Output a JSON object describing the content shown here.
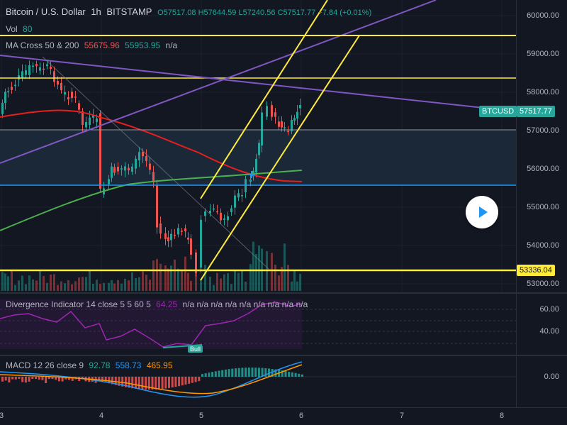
{
  "header": {
    "symbol": "Bitcoin / U.S. Dollar",
    "interval": "1h",
    "exchange": "BITSTAMP",
    "ohlc": "O57517.08 H57644.59 L57240.56 C57517.77 +7.84 (+0.01%)"
  },
  "legends": {
    "vol_name": "Vol",
    "vol_value": "80",
    "ma_name": "MA Cross 50 & 200",
    "ma_value_1": "55675.96",
    "ma_value_2": "55953.95",
    "ma_value_3": "n/a",
    "div_name": "Divergence Indicator 14 close 5 5 60 5",
    "div_value": "64.25",
    "div_rest": "n/a n/a n/a n/a n/a n/a n/a n/a n/a",
    "macd_name": "MACD 12 26 close 9",
    "macd_value_1": "92.78",
    "macd_value_2": "558.73",
    "macd_value_3": "465.95"
  },
  "price_axis": [
    "60000.00",
    "59000.00",
    "58000.00",
    "57000.00",
    "56000.00",
    "55000.00",
    "54000.00",
    "53000.00"
  ],
  "div_axis": [
    "60.00",
    "40.00"
  ],
  "macd_axis": [
    "0.00"
  ],
  "time_axis": [
    "3",
    "4",
    "5",
    "6",
    "7",
    "8"
  ],
  "tags": {
    "symbol_tag": "BTCUSD",
    "last_price": "57517.77",
    "support_price": "53336.04"
  },
  "bull_label": "Bull",
  "colors": {
    "background": "#131722",
    "up": "#26a69a",
    "down": "#ef5350",
    "ma_fast": "#e91e1e",
    "ma_slow": "#4caf50",
    "trendline_yellow": "#ffeb3b",
    "trendline_purple": "#7e57c2",
    "hline_blue": "#2196f3",
    "macd": "#2196f3",
    "signal": "#ff9800",
    "divergence": "#9c27b0"
  },
  "icons": {
    "play": "play-icon"
  }
}
